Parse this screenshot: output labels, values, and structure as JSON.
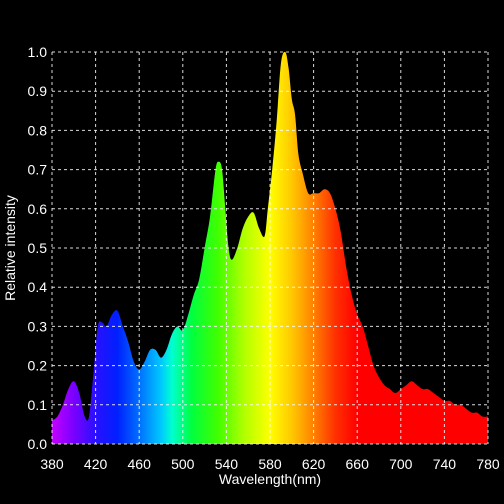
{
  "chart_data": {
    "type": "area",
    "xlabel": "Wavelength(nm)",
    "ylabel": "Relative intensity",
    "xlim": [
      380,
      780
    ],
    "ylim": [
      0,
      1.0
    ],
    "xticks": [
      380,
      420,
      460,
      500,
      540,
      580,
      620,
      660,
      700,
      740,
      780
    ],
    "yticks": [
      0.0,
      0.1,
      0.2,
      0.3,
      0.4,
      0.5,
      0.6,
      0.7,
      0.8,
      0.9,
      1.0
    ],
    "ytick_labels": [
      "0.0",
      "0.1",
      "0.2",
      "0.3",
      "0.4",
      "0.5",
      "0.6",
      "0.7",
      "0.8",
      "0.9",
      "1.0"
    ],
    "grid": true,
    "fill": "visible-spectrum-gradient",
    "series": [
      {
        "x": [
          380,
          385,
          390,
          395,
          400,
          405,
          410,
          414,
          418,
          422,
          426,
          430,
          435,
          440,
          445,
          450,
          455,
          460,
          465,
          470,
          475,
          480,
          485,
          490,
          495,
          500,
          505,
          510,
          515,
          520,
          525,
          530,
          533,
          536,
          539,
          542,
          545,
          550,
          555,
          560,
          565,
          570,
          575,
          578,
          582,
          586,
          590,
          594,
          597,
          600,
          603,
          606,
          610,
          615,
          620,
          625,
          630,
          635,
          640,
          645,
          650,
          655,
          660,
          665,
          670,
          675,
          680,
          685,
          690,
          695,
          700,
          705,
          710,
          715,
          720,
          725,
          730,
          735,
          740,
          745,
          750,
          755,
          760,
          765,
          770,
          775,
          780
        ],
        "values": [
          0.06,
          0.07,
          0.1,
          0.14,
          0.16,
          0.13,
          0.07,
          0.07,
          0.18,
          0.3,
          0.31,
          0.3,
          0.33,
          0.34,
          0.3,
          0.26,
          0.21,
          0.19,
          0.21,
          0.24,
          0.24,
          0.22,
          0.24,
          0.28,
          0.3,
          0.29,
          0.33,
          0.38,
          0.42,
          0.5,
          0.58,
          0.7,
          0.72,
          0.7,
          0.6,
          0.5,
          0.47,
          0.5,
          0.55,
          0.58,
          0.59,
          0.55,
          0.53,
          0.6,
          0.7,
          0.82,
          0.97,
          1.0,
          0.96,
          0.88,
          0.84,
          0.74,
          0.69,
          0.64,
          0.64,
          0.64,
          0.65,
          0.64,
          0.6,
          0.54,
          0.45,
          0.38,
          0.33,
          0.3,
          0.25,
          0.2,
          0.17,
          0.15,
          0.14,
          0.13,
          0.14,
          0.15,
          0.16,
          0.15,
          0.14,
          0.14,
          0.13,
          0.12,
          0.11,
          0.11,
          0.1,
          0.1,
          0.09,
          0.08,
          0.08,
          0.07,
          0.07
        ]
      }
    ]
  }
}
